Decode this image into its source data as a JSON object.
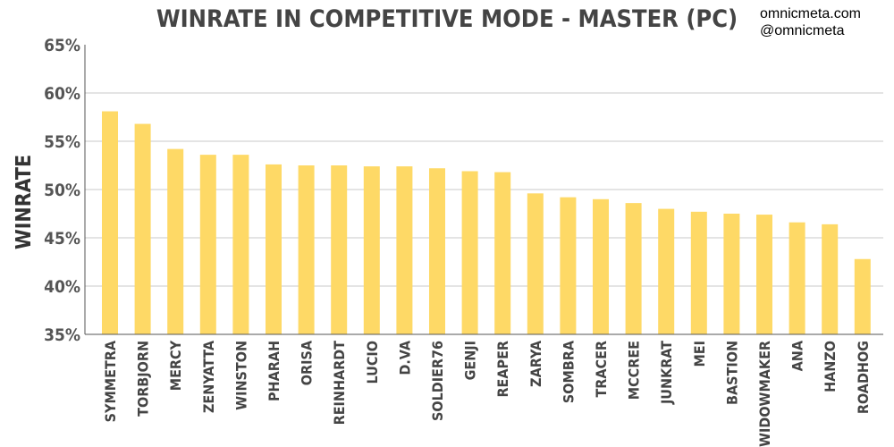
{
  "chart_data": {
    "type": "bar",
    "title": "WINRATE IN COMPETITIVE MODE - MASTER (PC)",
    "ylabel": "WINRATE",
    "xlabel": "",
    "ylim": [
      35,
      65
    ],
    "yticks": [
      35,
      40,
      45,
      50,
      55,
      60,
      65
    ],
    "ytick_suffix": "%",
    "grid": true,
    "bar_color": "#fed966",
    "categories": [
      "SYMMETRA",
      "TORBJORN",
      "MERCY",
      "ZENYATTA",
      "WINSTON",
      "PHARAH",
      "ORISA",
      "REINHARDT",
      "LUCIO",
      "D.VA",
      "SOLDIER76",
      "GENJI",
      "REAPER",
      "ZARYA",
      "SOMBRA",
      "TRACER",
      "MCCREE",
      "JUNKRAT",
      "MEI",
      "BASTION",
      "WIDOWMAKER",
      "ANA",
      "HANZO",
      "ROADHOG"
    ],
    "values": [
      58.1,
      56.8,
      54.2,
      53.6,
      53.6,
      52.6,
      52.5,
      52.5,
      52.4,
      52.4,
      52.2,
      51.9,
      51.8,
      49.6,
      49.2,
      49.0,
      48.6,
      48.0,
      47.7,
      47.5,
      47.4,
      46.6,
      46.4,
      42.8
    ]
  },
  "credits": {
    "site": "omnicmeta.com",
    "handle": "@omnicmeta"
  }
}
